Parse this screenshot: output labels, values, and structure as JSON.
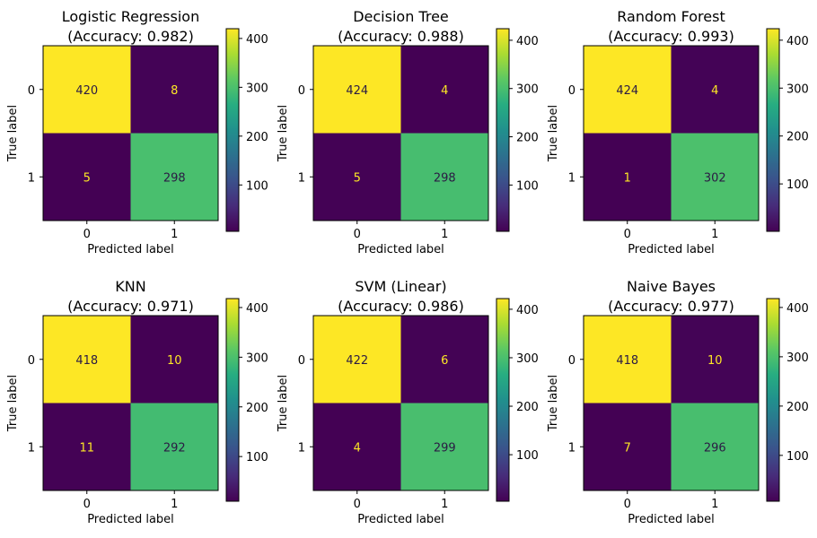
{
  "chart_data": [
    {
      "type": "heatmap",
      "title_line1": "Logistic Regression",
      "title_line2": "(Accuracy: 0.982)",
      "xlabel": "Predicted label",
      "ylabel": "True label",
      "x_ticks": [
        "0",
        "1"
      ],
      "y_ticks": [
        "0",
        "1"
      ],
      "matrix": [
        [
          420,
          8
        ],
        [
          5,
          298
        ]
      ],
      "colorbar_ticks": [
        100,
        200,
        300,
        400
      ],
      "colorbar_range": [
        5,
        420
      ],
      "colormap": "viridis"
    },
    {
      "type": "heatmap",
      "title_line1": "Decision Tree",
      "title_line2": "(Accuracy: 0.988)",
      "xlabel": "Predicted label",
      "ylabel": "True label",
      "x_ticks": [
        "0",
        "1"
      ],
      "y_ticks": [
        "0",
        "1"
      ],
      "matrix": [
        [
          424,
          4
        ],
        [
          5,
          298
        ]
      ],
      "colorbar_ticks": [
        100,
        200,
        300,
        400
      ],
      "colorbar_range": [
        4,
        424
      ],
      "colormap": "viridis"
    },
    {
      "type": "heatmap",
      "title_line1": "Random Forest",
      "title_line2": "(Accuracy: 0.993)",
      "xlabel": "Predicted label",
      "ylabel": "True label",
      "x_ticks": [
        "0",
        "1"
      ],
      "y_ticks": [
        "0",
        "1"
      ],
      "matrix": [
        [
          424,
          4
        ],
        [
          1,
          302
        ]
      ],
      "colorbar_ticks": [
        100,
        200,
        300,
        400
      ],
      "colorbar_range": [
        1,
        424
      ],
      "colormap": "viridis"
    },
    {
      "type": "heatmap",
      "title_line1": "KNN",
      "title_line2": "(Accuracy: 0.971)",
      "xlabel": "Predicted label",
      "ylabel": "True label",
      "x_ticks": [
        "0",
        "1"
      ],
      "y_ticks": [
        "0",
        "1"
      ],
      "matrix": [
        [
          418,
          10
        ],
        [
          11,
          292
        ]
      ],
      "colorbar_ticks": [
        100,
        200,
        300,
        400
      ],
      "colorbar_range": [
        10,
        418
      ],
      "colormap": "viridis"
    },
    {
      "type": "heatmap",
      "title_line1": "SVM (Linear)",
      "title_line2": "(Accuracy: 0.986)",
      "xlabel": "Predicted label",
      "ylabel": "True label",
      "x_ticks": [
        "0",
        "1"
      ],
      "y_ticks": [
        "0",
        "1"
      ],
      "matrix": [
        [
          422,
          6
        ],
        [
          4,
          299
        ]
      ],
      "colorbar_ticks": [
        100,
        200,
        300,
        400
      ],
      "colorbar_range": [
        4,
        422
      ],
      "colormap": "viridis"
    },
    {
      "type": "heatmap",
      "title_line1": "Naive Bayes",
      "title_line2": "(Accuracy: 0.977)",
      "xlabel": "Predicted label",
      "ylabel": "True label",
      "x_ticks": [
        "0",
        "1"
      ],
      "y_ticks": [
        "0",
        "1"
      ],
      "matrix": [
        [
          418,
          10
        ],
        [
          7,
          296
        ]
      ],
      "colorbar_ticks": [
        100,
        200,
        300,
        400
      ],
      "colorbar_range": [
        7,
        418
      ],
      "colormap": "viridis"
    }
  ]
}
